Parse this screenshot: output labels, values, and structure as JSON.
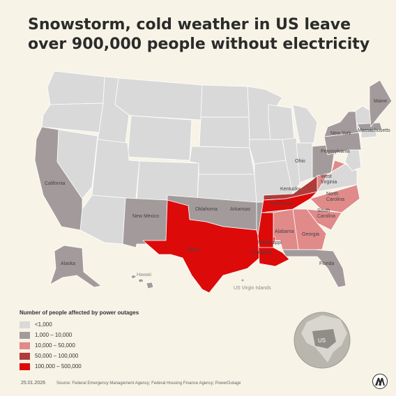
{
  "title": "Snowstorm, cold weather in US leave over 900,000 people without electricity",
  "colors": {
    "background": "#f7f3e6",
    "lt1000": "#d9d9d9",
    "r1000_10000": "#a39b9b",
    "r10000_50000": "#e08a8a",
    "r50000_100000": "#b03b3b",
    "r100000_500000": "#dd0a0a"
  },
  "state_labels": {
    "maine": "Maine",
    "massachusetts": "Massachusetts",
    "new_york": "New York",
    "pennsylvania": "Pennsylvania",
    "ohio": "Ohio",
    "west_virginia": "West\nVirginia",
    "kentucky": "Kentucky",
    "tennessee": "Tennessee",
    "north_carolina": "North\nCarolina",
    "south_carolina": "South\nCarolina",
    "georgia": "Georgia",
    "alabama": "Alabama",
    "mississippi": "Mississippi",
    "louisiana": "Louisiana",
    "arkansas": "Arkansas",
    "oklahoma": "Oklahoma",
    "texas": "Texas",
    "new_mexico": "New Mexico",
    "california": "California",
    "florida": "Florida",
    "alaska": "Alaska",
    "hawaii": "Hawaii",
    "us_virgin_islands": "US Virgin Islands"
  },
  "legend": {
    "title": "Number of people affected by power outages",
    "items": [
      {
        "label": "<1,000",
        "color": "#d9d9d9"
      },
      {
        "label": "1,000 – 10,000",
        "color": "#a39b9b"
      },
      {
        "label": "10,000 – 50,000",
        "color": "#e08a8a"
      },
      {
        "label": "50,000 – 100,000",
        "color": "#b03b3b"
      },
      {
        "label": "100,000 – 500,000",
        "color": "#dd0a0a"
      }
    ]
  },
  "globe_label": "US",
  "footer": {
    "date": "25.01.2026",
    "source": "Source: Federal Emergency Management Agency; Federal Housing Finance Agency; PowerOutage"
  },
  "logo_icon": "aa-logo-icon"
}
